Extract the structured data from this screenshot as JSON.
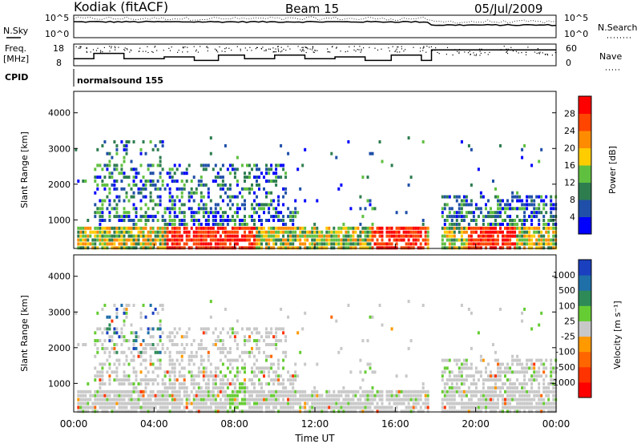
{
  "header": {
    "station": "Kodiak (fitACF)",
    "beam": "Beam 15",
    "date": "05/Jul/2009"
  },
  "left_labels": {
    "nsky": "N.Sky",
    "freq": "Freq.",
    "freq_unit": "[MHz]",
    "cpid": "CPID"
  },
  "right_labels": {
    "nsearch": "N.Search",
    "nave": "Nave"
  },
  "cpid_name": "normalsound 155",
  "colors": {
    "power": [
      "#0000ff",
      "#1f4fa8",
      "#2e7d4f",
      "#5fbf3f",
      "#ffcc00",
      "#ff8c00",
      "#ff4500",
      "#ff0000"
    ],
    "velocity": [
      "#1a3fbf",
      "#1f6fa8",
      "#2e8b57",
      "#66cc33",
      "#c8c8c8",
      "#ff9900",
      "#ff6600",
      "#ff3300",
      "#ff0000"
    ]
  },
  "chart_data": [
    {
      "type": "line",
      "panel": "noise",
      "y_left_ticks": [
        "10^5",
        "10^0"
      ],
      "y_right_ticks": [
        "10^5",
        "10^0"
      ],
      "x_range": [
        0,
        24
      ]
    },
    {
      "type": "line",
      "panel": "frequency",
      "y_left_ticks": [
        "18",
        "8"
      ],
      "y_right_ticks": [
        "60",
        "0"
      ],
      "ylim_left": [
        8,
        18
      ],
      "ylim_right": [
        0,
        60
      ],
      "x_range": [
        0,
        24
      ]
    },
    {
      "type": "heatmap",
      "panel": "power",
      "ylabel": "Slant Range [km]",
      "y_ticks": [
        "1000",
        "2000",
        "3000",
        "4000"
      ],
      "ylim": [
        200,
        4600
      ],
      "colorbar_label": "Power [dB]",
      "colorbar_ticks": [
        "4",
        "8",
        "12",
        "16",
        "20",
        "24",
        "28"
      ],
      "x_range": [
        0,
        24
      ]
    },
    {
      "type": "heatmap",
      "panel": "velocity",
      "ylabel": "Slant Range [km]",
      "y_ticks": [
        "1000",
        "2000",
        "3000",
        "4000"
      ],
      "ylim": [
        200,
        4600
      ],
      "colorbar_label": "Velocity [m s⁻¹]",
      "colorbar_ticks": [
        "1000",
        "500",
        "100",
        "25",
        "-25",
        "-100",
        "-500",
        "-1000"
      ],
      "x_range": [
        0,
        24
      ]
    }
  ],
  "x_axis": {
    "ticks": [
      "00:00",
      "04:00",
      "08:00",
      "12:00",
      "16:00",
      "20:00",
      "00:00"
    ],
    "label": "Time UT"
  }
}
